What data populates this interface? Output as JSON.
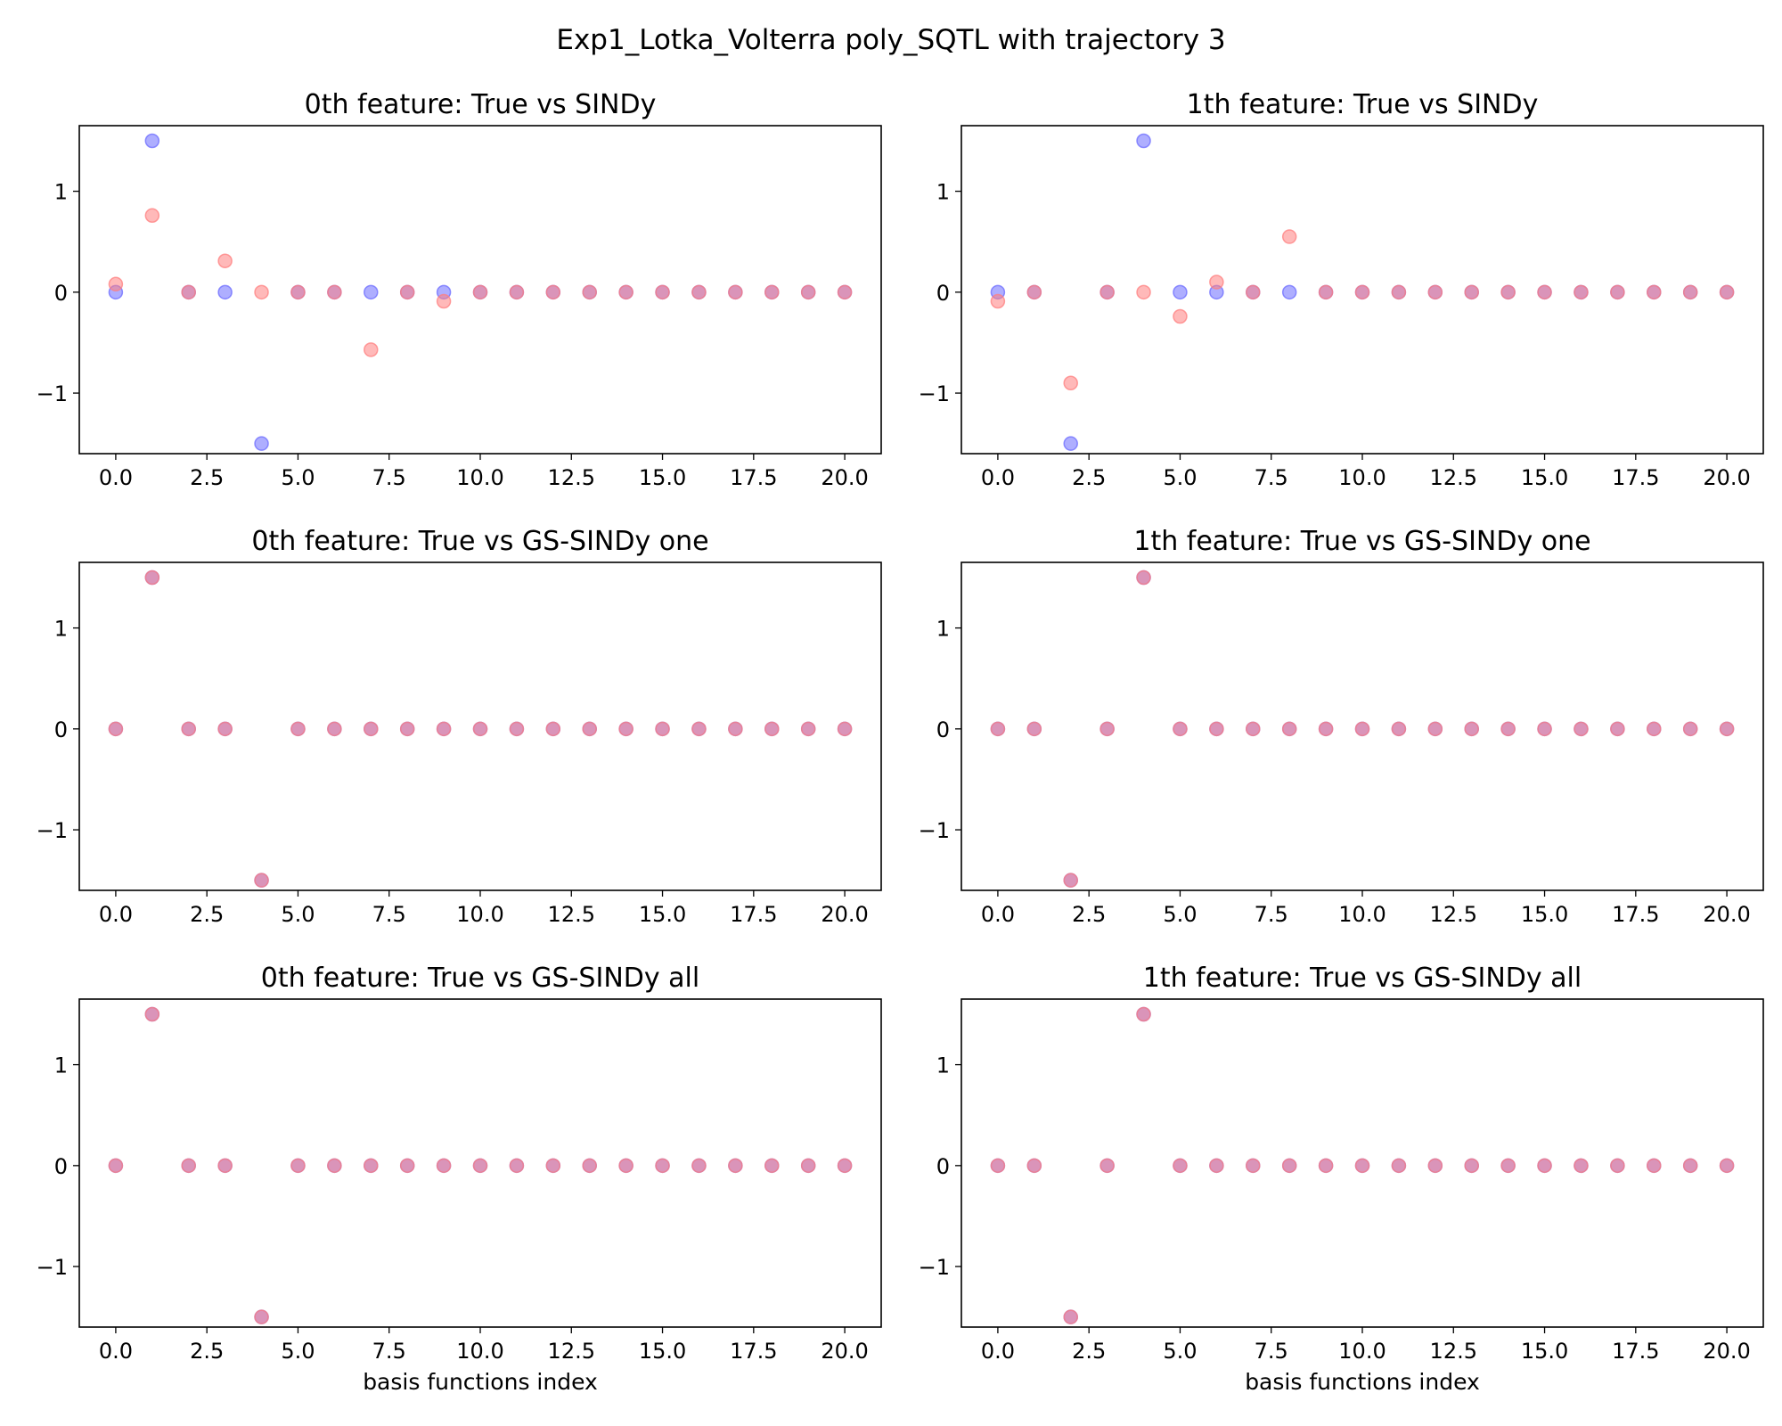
{
  "figure": {
    "title": "Exp1_Lotka_Volterra poly_SQTL with trajectory 3"
  },
  "colors": {
    "true_marker": "#6b6bff",
    "estimate_marker": "#ff7f7f",
    "overlap_marker": "#a5428a"
  },
  "chart_data": [
    {
      "type": "scatter",
      "title": "0th feature: True vs SINDy",
      "xlabel": "",
      "ylabel": "",
      "xlim": [
        -1,
        21
      ],
      "ylim": [
        -1.6,
        1.65
      ],
      "xticks": [
        "0.0",
        "2.5",
        "5.0",
        "7.5",
        "10.0",
        "12.5",
        "15.0",
        "17.5",
        "20.0"
      ],
      "yticks": [
        "−1",
        "0",
        "1"
      ],
      "grid": false,
      "x": [
        0,
        1,
        2,
        3,
        4,
        5,
        6,
        7,
        8,
        9,
        10,
        11,
        12,
        13,
        14,
        15,
        16,
        17,
        18,
        19,
        20
      ],
      "series": [
        {
          "values": [
            0,
            1.5,
            0,
            0,
            -1.5,
            0,
            0,
            0,
            0,
            0,
            0,
            0,
            0,
            0,
            0,
            0,
            0,
            0,
            0,
            0,
            0
          ]
        },
        {
          "values": [
            0.08,
            0.76,
            0,
            0.31,
            0,
            0,
            0,
            -0.57,
            0,
            -0.09,
            0,
            0,
            0,
            0,
            0,
            0,
            0,
            0,
            0,
            0,
            0
          ]
        }
      ]
    },
    {
      "type": "scatter",
      "title": "1th feature: True vs SINDy",
      "xlabel": "",
      "ylabel": "",
      "xlim": [
        -1,
        21
      ],
      "ylim": [
        -1.6,
        1.65
      ],
      "xticks": [
        "0.0",
        "2.5",
        "5.0",
        "7.5",
        "10.0",
        "12.5",
        "15.0",
        "17.5",
        "20.0"
      ],
      "yticks": [
        "−1",
        "0",
        "1"
      ],
      "grid": false,
      "x": [
        0,
        1,
        2,
        3,
        4,
        5,
        6,
        7,
        8,
        9,
        10,
        11,
        12,
        13,
        14,
        15,
        16,
        17,
        18,
        19,
        20
      ],
      "series": [
        {
          "values": [
            0,
            0,
            -1.5,
            0,
            1.5,
            0,
            0,
            0,
            0,
            0,
            0,
            0,
            0,
            0,
            0,
            0,
            0,
            0,
            0,
            0,
            0
          ]
        },
        {
          "values": [
            -0.09,
            0,
            -0.9,
            0,
            0,
            -0.24,
            0.1,
            0,
            0.55,
            0,
            0,
            0,
            0,
            0,
            0,
            0,
            0,
            0,
            0,
            0,
            0
          ]
        }
      ]
    },
    {
      "type": "scatter",
      "title": "0th feature: True vs GS-SINDy one",
      "xlabel": "",
      "ylabel": "",
      "xlim": [
        -1,
        21
      ],
      "ylim": [
        -1.6,
        1.65
      ],
      "xticks": [
        "0.0",
        "2.5",
        "5.0",
        "7.5",
        "10.0",
        "12.5",
        "15.0",
        "17.5",
        "20.0"
      ],
      "yticks": [
        "−1",
        "0",
        "1"
      ],
      "grid": false,
      "x": [
        0,
        1,
        2,
        3,
        4,
        5,
        6,
        7,
        8,
        9,
        10,
        11,
        12,
        13,
        14,
        15,
        16,
        17,
        18,
        19,
        20
      ],
      "series": [
        {
          "values": [
            0,
            1.5,
            0,
            0,
            -1.5,
            0,
            0,
            0,
            0,
            0,
            0,
            0,
            0,
            0,
            0,
            0,
            0,
            0,
            0,
            0,
            0
          ]
        },
        {
          "values": [
            0,
            1.5,
            0,
            0,
            -1.5,
            0,
            0,
            0,
            0,
            0,
            0,
            0,
            0,
            0,
            0,
            0,
            0,
            0,
            0,
            0,
            0
          ]
        }
      ]
    },
    {
      "type": "scatter",
      "title": "1th feature: True vs GS-SINDy one",
      "xlabel": "",
      "ylabel": "",
      "xlim": [
        -1,
        21
      ],
      "ylim": [
        -1.6,
        1.65
      ],
      "xticks": [
        "0.0",
        "2.5",
        "5.0",
        "7.5",
        "10.0",
        "12.5",
        "15.0",
        "17.5",
        "20.0"
      ],
      "yticks": [
        "−1",
        "0",
        "1"
      ],
      "grid": false,
      "x": [
        0,
        1,
        2,
        3,
        4,
        5,
        6,
        7,
        8,
        9,
        10,
        11,
        12,
        13,
        14,
        15,
        16,
        17,
        18,
        19,
        20
      ],
      "series": [
        {
          "values": [
            0,
            0,
            -1.5,
            0,
            1.5,
            0,
            0,
            0,
            0,
            0,
            0,
            0,
            0,
            0,
            0,
            0,
            0,
            0,
            0,
            0,
            0
          ]
        },
        {
          "values": [
            0,
            0,
            -1.5,
            0,
            1.5,
            0,
            0,
            0,
            0,
            0,
            0,
            0,
            0,
            0,
            0,
            0,
            0,
            0,
            0,
            0,
            0
          ]
        }
      ]
    },
    {
      "type": "scatter",
      "title": "0th feature: True vs GS-SINDy all",
      "xlabel": "basis functions index",
      "ylabel": "",
      "xlim": [
        -1,
        21
      ],
      "ylim": [
        -1.6,
        1.65
      ],
      "xticks": [
        "0.0",
        "2.5",
        "5.0",
        "7.5",
        "10.0",
        "12.5",
        "15.0",
        "17.5",
        "20.0"
      ],
      "yticks": [
        "−1",
        "0",
        "1"
      ],
      "grid": false,
      "x": [
        0,
        1,
        2,
        3,
        4,
        5,
        6,
        7,
        8,
        9,
        10,
        11,
        12,
        13,
        14,
        15,
        16,
        17,
        18,
        19,
        20
      ],
      "series": [
        {
          "values": [
            0,
            1.5,
            0,
            0,
            -1.5,
            0,
            0,
            0,
            0,
            0,
            0,
            0,
            0,
            0,
            0,
            0,
            0,
            0,
            0,
            0,
            0
          ]
        },
        {
          "values": [
            0,
            1.5,
            0,
            0,
            -1.5,
            0,
            0,
            0,
            0,
            0,
            0,
            0,
            0,
            0,
            0,
            0,
            0,
            0,
            0,
            0,
            0
          ]
        }
      ]
    },
    {
      "type": "scatter",
      "title": "1th feature: True vs GS-SINDy all",
      "xlabel": "basis functions index",
      "ylabel": "",
      "xlim": [
        -1,
        21
      ],
      "ylim": [
        -1.6,
        1.65
      ],
      "xticks": [
        "0.0",
        "2.5",
        "5.0",
        "7.5",
        "10.0",
        "12.5",
        "15.0",
        "17.5",
        "20.0"
      ],
      "yticks": [
        "−1",
        "0",
        "1"
      ],
      "grid": false,
      "x": [
        0,
        1,
        2,
        3,
        4,
        5,
        6,
        7,
        8,
        9,
        10,
        11,
        12,
        13,
        14,
        15,
        16,
        17,
        18,
        19,
        20
      ],
      "series": [
        {
          "values": [
            0,
            0,
            -1.5,
            0,
            1.5,
            0,
            0,
            0,
            0,
            0,
            0,
            0,
            0,
            0,
            0,
            0,
            0,
            0,
            0,
            0,
            0
          ]
        },
        {
          "values": [
            0,
            0,
            -1.5,
            0,
            1.5,
            0,
            0,
            0,
            0,
            0,
            0,
            0,
            0,
            0,
            0,
            0,
            0,
            0,
            0,
            0,
            0
          ]
        }
      ]
    }
  ]
}
